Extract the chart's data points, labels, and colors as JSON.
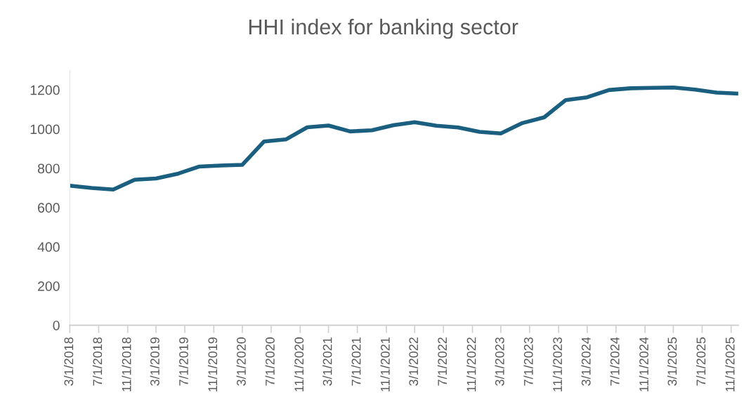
{
  "chart_data": {
    "type": "line",
    "title": "HHI index for banking sector",
    "x": [
      "2018-03-01",
      "2018-06-01",
      "2018-09-01",
      "2018-12-01",
      "2019-03-01",
      "2019-06-01",
      "2019-09-01",
      "2019-12-01",
      "2020-03-01",
      "2020-06-01",
      "2020-09-01",
      "2020-12-01",
      "2021-03-01",
      "2021-06-01",
      "2021-09-01",
      "2021-12-01",
      "2022-03-01",
      "2022-06-01",
      "2022-09-01",
      "2022-12-01",
      "2023-03-01",
      "2023-06-01",
      "2023-09-01",
      "2023-12-01",
      "2024-03-01",
      "2024-06-01",
      "2024-09-01",
      "2024-12-01",
      "2025-03-01",
      "2025-06-01",
      "2025-09-01",
      "2025-12-01"
    ],
    "series": [
      {
        "color": "#1a5e80",
        "values": [
          711,
          700,
          692,
          742,
          748,
          772,
          809,
          814,
          818,
          937,
          947,
          1009,
          1018,
          988,
          994,
          1020,
          1035,
          1017,
          1008,
          986,
          978,
          1031,
          1060,
          1148,
          1162,
          1199,
          1208,
          1210,
          1212,
          1201,
          1186,
          1181
        ]
      }
    ],
    "xlim": [
      "2018-03-01",
      "2025-12-01"
    ],
    "xticks": [
      {
        "value": "2018-03-01",
        "label": "3/1/2018"
      },
      {
        "value": "2018-07-01",
        "label": "7/1/2018"
      },
      {
        "value": "2018-11-01",
        "label": "11/1/2018"
      },
      {
        "value": "2019-03-01",
        "label": "3/1/2019"
      },
      {
        "value": "2019-07-01",
        "label": "7/1/2019"
      },
      {
        "value": "2019-11-01",
        "label": "11/1/2019"
      },
      {
        "value": "2020-03-01",
        "label": "3/1/2020"
      },
      {
        "value": "2020-07-01",
        "label": "7/1/2020"
      },
      {
        "value": "2020-11-01",
        "label": "11/1/2020"
      },
      {
        "value": "2021-03-01",
        "label": "3/1/2021"
      },
      {
        "value": "2021-07-01",
        "label": "7/1/2021"
      },
      {
        "value": "2021-11-01",
        "label": "11/1/2021"
      },
      {
        "value": "2022-03-01",
        "label": "3/1/2022"
      },
      {
        "value": "2022-07-01",
        "label": "7/1/2022"
      },
      {
        "value": "2022-11-01",
        "label": "11/1/2022"
      },
      {
        "value": "2023-03-01",
        "label": "3/1/2023"
      },
      {
        "value": "2023-07-01",
        "label": "7/1/2023"
      },
      {
        "value": "2023-11-01",
        "label": "11/1/2023"
      },
      {
        "value": "2024-03-01",
        "label": "3/1/2024"
      },
      {
        "value": "2024-07-01",
        "label": "7/1/2024"
      },
      {
        "value": "2024-11-01",
        "label": "11/1/2024"
      },
      {
        "value": "2025-03-01",
        "label": "3/1/2025"
      },
      {
        "value": "2025-07-01",
        "label": "7/1/2025"
      },
      {
        "value": "2025-11-01",
        "label": "11/1/2025"
      }
    ],
    "ylim": [
      0,
      1300
    ],
    "yticks": [
      0,
      200,
      400,
      600,
      800,
      1000,
      1200
    ],
    "grid": false,
    "marker": "none",
    "line_style": "solid"
  }
}
